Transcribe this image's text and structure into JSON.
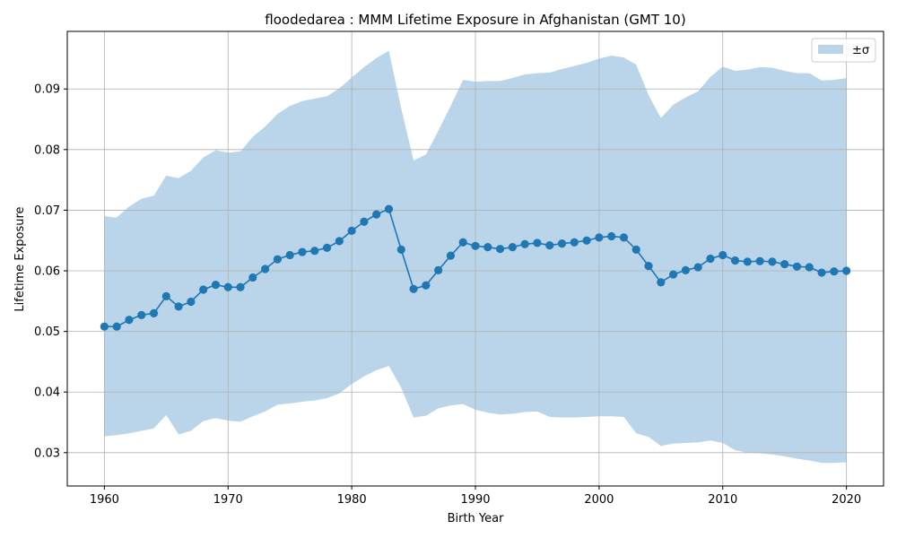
{
  "chart_data": {
    "type": "line",
    "title": "floodedarea : MMM Lifetime Exposure in Afghanistan (GMT 10)",
    "xlabel": "Birth Year",
    "ylabel": "Lifetime Exposure",
    "xlim": [
      1957,
      2023
    ],
    "ylim": [
      0.0245,
      0.0995
    ],
    "xticks": [
      1960,
      1970,
      1980,
      1990,
      2000,
      2010,
      2020
    ],
    "yticks": [
      0.03,
      0.04,
      0.05,
      0.06,
      0.07,
      0.08,
      0.09
    ],
    "ytick_labels": [
      "0.03",
      "0.04",
      "0.05",
      "0.06",
      "0.07",
      "0.08",
      "0.09"
    ],
    "grid": true,
    "legend": {
      "position": "top-right",
      "label": "±σ"
    },
    "line_color": "#1f77b4",
    "band_color": "#bad5e9",
    "x": [
      1960,
      1961,
      1962,
      1963,
      1964,
      1965,
      1966,
      1967,
      1968,
      1969,
      1970,
      1971,
      1972,
      1973,
      1974,
      1975,
      1976,
      1977,
      1978,
      1979,
      1980,
      1981,
      1982,
      1983,
      1984,
      1985,
      1986,
      1987,
      1988,
      1989,
      1990,
      1991,
      1992,
      1993,
      1994,
      1995,
      1996,
      1997,
      1998,
      1999,
      2000,
      2001,
      2002,
      2003,
      2004,
      2005,
      2006,
      2007,
      2008,
      2009,
      2010,
      2011,
      2012,
      2013,
      2014,
      2015,
      2016,
      2017,
      2018,
      2019,
      2020
    ],
    "series": [
      {
        "values": [
          0.0508,
          0.0508,
          0.0519,
          0.0527,
          0.053,
          0.0558,
          0.0541,
          0.0549,
          0.0569,
          0.0577,
          0.0573,
          0.0573,
          0.0589,
          0.0603,
          0.0619,
          0.0626,
          0.0631,
          0.0633,
          0.0638,
          0.0649,
          0.0666,
          0.0681,
          0.0693,
          0.0702,
          0.0635,
          0.057,
          0.0576,
          0.0601,
          0.0625,
          0.0647,
          0.0641,
          0.0639,
          0.0636,
          0.0639,
          0.0644,
          0.0646,
          0.0642,
          0.0645,
          0.0647,
          0.065,
          0.0655,
          0.0657,
          0.0655,
          0.0635,
          0.0608,
          0.0581,
          0.0594,
          0.0601,
          0.0606,
          0.062,
          0.0626,
          0.0617,
          0.0615,
          0.0616,
          0.0615,
          0.0611,
          0.0607,
          0.0606,
          0.0597,
          0.0599,
          0.06
        ],
        "upper": [
          0.069,
          0.0688,
          0.0706,
          0.0719,
          0.0724,
          0.0757,
          0.0753,
          0.0765,
          0.0787,
          0.0799,
          0.0795,
          0.0797,
          0.0821,
          0.0838,
          0.0859,
          0.0872,
          0.088,
          0.0884,
          0.0888,
          0.0901,
          0.0919,
          0.0936,
          0.0951,
          0.0963,
          0.0868,
          0.0782,
          0.0792,
          0.0831,
          0.0872,
          0.0915,
          0.0912,
          0.0913,
          0.0913,
          0.0918,
          0.0924,
          0.0926,
          0.0927,
          0.0933,
          0.0938,
          0.0943,
          0.095,
          0.0955,
          0.0952,
          0.094,
          0.089,
          0.0852,
          0.0874,
          0.0886,
          0.0896,
          0.092,
          0.0937,
          0.093,
          0.0932,
          0.0936,
          0.0935,
          0.093,
          0.0926,
          0.0926,
          0.0914,
          0.0915,
          0.0918
        ],
        "lower": [
          0.0327,
          0.0329,
          0.0332,
          0.0336,
          0.034,
          0.0362,
          0.033,
          0.0336,
          0.0352,
          0.0357,
          0.0353,
          0.0351,
          0.036,
          0.0368,
          0.0379,
          0.0381,
          0.0384,
          0.0386,
          0.039,
          0.0398,
          0.0413,
          0.0426,
          0.0436,
          0.0443,
          0.0407,
          0.0358,
          0.0361,
          0.0373,
          0.0378,
          0.038,
          0.0371,
          0.0366,
          0.0363,
          0.0364,
          0.0367,
          0.0368,
          0.0359,
          0.0358,
          0.0358,
          0.0359,
          0.036,
          0.036,
          0.0359,
          0.0332,
          0.0326,
          0.0311,
          0.0315,
          0.0316,
          0.0317,
          0.032,
          0.0316,
          0.0304,
          0.03,
          0.0299,
          0.0297,
          0.0294,
          0.029,
          0.0287,
          0.0283,
          0.0283,
          0.0284
        ]
      }
    ]
  }
}
